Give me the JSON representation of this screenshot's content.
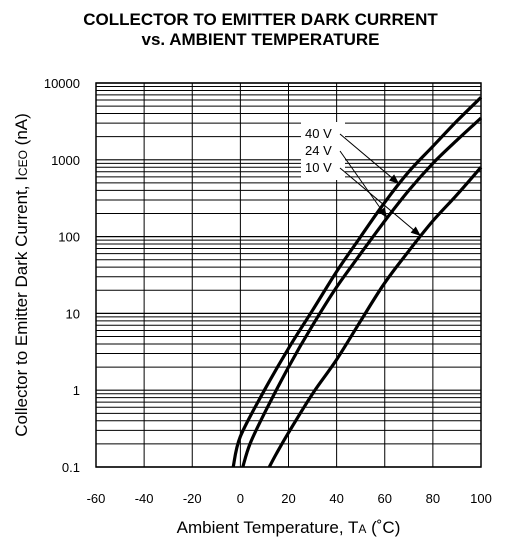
{
  "chart_data": {
    "type": "line",
    "title": "COLLECTOR TO EMITTER DARK CURRENT",
    "subtitle": "vs. AMBIENT TEMPERATURE",
    "xlabel": "Ambient Temperature, TA (˚C)",
    "xlabel_main": "Ambient Temperature, T",
    "xlabel_sub": "A",
    "xlabel_unit": " (˚C)",
    "ylabel": "Collector to Emitter Dark Current, ICEO (nA)",
    "ylabel_main": "Collector to Emitter Dark Current, I",
    "ylabel_sub": "CEO",
    "ylabel_unit": " (nA)",
    "xlim": [
      -60,
      100
    ],
    "ylim": [
      0.1,
      10000
    ],
    "yscale": "log",
    "grid": true,
    "x_ticks": [
      "-60",
      "-40",
      "-20",
      "0",
      "20",
      "40",
      "60",
      "80",
      "100"
    ],
    "y_ticks": [
      "0.1",
      "1",
      "10",
      "100",
      "1000",
      "10000"
    ],
    "series": [
      {
        "name": "40 V",
        "x": [
          -3,
          0,
          10,
          20,
          30,
          40,
          50,
          60,
          70,
          80,
          90,
          100
        ],
        "y": [
          0.1,
          0.25,
          1.0,
          3.5,
          11,
          35,
          100,
          280,
          700,
          1500,
          3200,
          6500
        ]
      },
      {
        "name": "24 V",
        "x": [
          1,
          4,
          10,
          20,
          30,
          40,
          50,
          60,
          70,
          80,
          90,
          100
        ],
        "y": [
          0.1,
          0.2,
          0.5,
          2.0,
          7,
          22,
          60,
          160,
          400,
          900,
          1800,
          3500
        ]
      },
      {
        "name": "10 V",
        "x": [
          12,
          15,
          20,
          30,
          40,
          50,
          60,
          70,
          80,
          90,
          100
        ],
        "y": [
          0.1,
          0.15,
          0.28,
          0.9,
          2.5,
          8,
          25,
          65,
          160,
          350,
          800
        ]
      }
    ]
  }
}
